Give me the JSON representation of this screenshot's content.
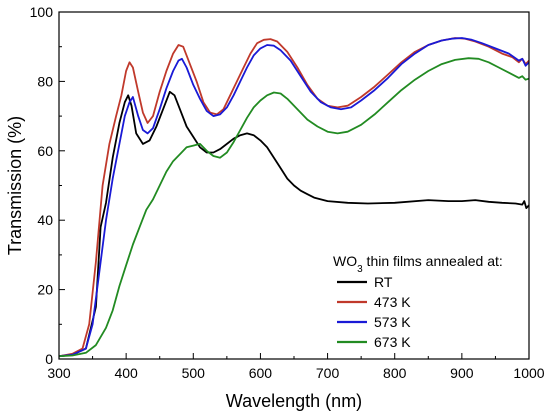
{
  "chart_data": {
    "type": "line",
    "xlabel": "Wavelength (nm)",
    "ylabel": "Transmission (%)",
    "xlim": [
      300,
      1000
    ],
    "ylim": [
      0,
      100
    ],
    "xticks": [
      300,
      400,
      500,
      600,
      700,
      800,
      900,
      1000
    ],
    "yticks": [
      0,
      20,
      40,
      60,
      80,
      100
    ],
    "grid": false,
    "legend": {
      "title_main": "WO",
      "title_sub": "3",
      "title_rest": " thin films annealed at:",
      "placement": "bottom-right"
    },
    "series": [
      {
        "name": "RT",
        "color": "#000000",
        "points": [
          [
            300,
            0.8
          ],
          [
            320,
            1.2
          ],
          [
            340,
            3
          ],
          [
            355,
            15
          ],
          [
            362,
            38
          ],
          [
            370,
            45
          ],
          [
            380,
            58
          ],
          [
            390,
            68
          ],
          [
            398,
            74
          ],
          [
            403,
            76
          ],
          [
            408,
            73
          ],
          [
            415,
            65
          ],
          [
            425,
            62
          ],
          [
            435,
            63
          ],
          [
            445,
            67
          ],
          [
            455,
            72
          ],
          [
            465,
            77
          ],
          [
            472,
            76
          ],
          [
            480,
            72
          ],
          [
            490,
            67
          ],
          [
            500,
            64
          ],
          [
            510,
            61
          ],
          [
            520,
            59.5
          ],
          [
            530,
            59.5
          ],
          [
            540,
            60.5
          ],
          [
            550,
            62
          ],
          [
            560,
            63.5
          ],
          [
            570,
            64.5
          ],
          [
            580,
            65
          ],
          [
            590,
            64.5
          ],
          [
            600,
            63
          ],
          [
            610,
            61
          ],
          [
            620,
            58
          ],
          [
            630,
            55
          ],
          [
            640,
            52
          ],
          [
            650,
            50
          ],
          [
            660,
            48.5
          ],
          [
            670,
            47.5
          ],
          [
            680,
            46.5
          ],
          [
            700,
            45.5
          ],
          [
            730,
            45
          ],
          [
            760,
            44.8
          ],
          [
            800,
            45
          ],
          [
            850,
            45.8
          ],
          [
            880,
            45.5
          ],
          [
            900,
            45.5
          ],
          [
            920,
            45.8
          ],
          [
            940,
            45.3
          ],
          [
            960,
            45
          ],
          [
            980,
            44.8
          ],
          [
            990,
            44.5
          ],
          [
            993,
            45.5
          ],
          [
            996,
            43.5
          ],
          [
            1000,
            44.3
          ]
        ]
      },
      {
        "name": "473 K",
        "color": "#c0392b",
        "points": [
          [
            300,
            0.8
          ],
          [
            320,
            1.5
          ],
          [
            335,
            3
          ],
          [
            345,
            10
          ],
          [
            355,
            28
          ],
          [
            365,
            50
          ],
          [
            375,
            62
          ],
          [
            385,
            70
          ],
          [
            393,
            76
          ],
          [
            400,
            83
          ],
          [
            405,
            85.5
          ],
          [
            410,
            84
          ],
          [
            418,
            77
          ],
          [
            425,
            71
          ],
          [
            432,
            68
          ],
          [
            440,
            70
          ],
          [
            450,
            77
          ],
          [
            460,
            83
          ],
          [
            470,
            88
          ],
          [
            478,
            90.5
          ],
          [
            485,
            90
          ],
          [
            495,
            85
          ],
          [
            505,
            80
          ],
          [
            515,
            74
          ],
          [
            525,
            71
          ],
          [
            535,
            70.5
          ],
          [
            545,
            72
          ],
          [
            555,
            76
          ],
          [
            565,
            80
          ],
          [
            575,
            84
          ],
          [
            585,
            88
          ],
          [
            595,
            91
          ],
          [
            605,
            92
          ],
          [
            615,
            92.2
          ],
          [
            625,
            91.5
          ],
          [
            640,
            88.5
          ],
          [
            655,
            84
          ],
          [
            670,
            79
          ],
          [
            685,
            75
          ],
          [
            700,
            73
          ],
          [
            715,
            72.5
          ],
          [
            730,
            73
          ],
          [
            750,
            75.5
          ],
          [
            770,
            78.5
          ],
          [
            790,
            82
          ],
          [
            810,
            85.5
          ],
          [
            830,
            88.5
          ],
          [
            850,
            90.5
          ],
          [
            870,
            91.8
          ],
          [
            890,
            92.5
          ],
          [
            905,
            92.3
          ],
          [
            920,
            91.5
          ],
          [
            940,
            90
          ],
          [
            960,
            88
          ],
          [
            975,
            87
          ],
          [
            985,
            85.5
          ],
          [
            990,
            86.5
          ],
          [
            995,
            85
          ],
          [
            1000,
            86
          ]
        ]
      },
      {
        "name": "573 K",
        "color": "#1a1ad6",
        "points": [
          [
            300,
            0.8
          ],
          [
            320,
            1.2
          ],
          [
            340,
            3
          ],
          [
            350,
            10
          ],
          [
            360,
            25
          ],
          [
            370,
            40
          ],
          [
            380,
            52
          ],
          [
            390,
            62
          ],
          [
            398,
            70
          ],
          [
            405,
            74
          ],
          [
            410,
            75.5
          ],
          [
            418,
            70
          ],
          [
            425,
            66
          ],
          [
            432,
            65
          ],
          [
            440,
            66.5
          ],
          [
            450,
            72
          ],
          [
            460,
            78
          ],
          [
            470,
            83
          ],
          [
            478,
            86
          ],
          [
            483,
            86.5
          ],
          [
            490,
            84
          ],
          [
            500,
            79
          ],
          [
            510,
            75
          ],
          [
            520,
            71.5
          ],
          [
            530,
            70
          ],
          [
            540,
            70.5
          ],
          [
            550,
            72.5
          ],
          [
            560,
            76
          ],
          [
            570,
            80
          ],
          [
            580,
            84
          ],
          [
            590,
            87.5
          ],
          [
            600,
            89.5
          ],
          [
            610,
            90.5
          ],
          [
            620,
            90.3
          ],
          [
            630,
            89
          ],
          [
            645,
            86
          ],
          [
            660,
            81.5
          ],
          [
            675,
            77
          ],
          [
            690,
            74
          ],
          [
            705,
            72.5
          ],
          [
            720,
            72
          ],
          [
            735,
            72.5
          ],
          [
            750,
            74.5
          ],
          [
            770,
            77.5
          ],
          [
            790,
            81
          ],
          [
            810,
            85
          ],
          [
            830,
            88
          ],
          [
            850,
            90.5
          ],
          [
            870,
            91.8
          ],
          [
            885,
            92.3
          ],
          [
            900,
            92.5
          ],
          [
            915,
            92
          ],
          [
            930,
            91
          ],
          [
            950,
            89.5
          ],
          [
            970,
            88
          ],
          [
            985,
            86
          ],
          [
            990,
            86.5
          ],
          [
            995,
            84.5
          ],
          [
            1000,
            85.5
          ]
        ]
      },
      {
        "name": "673 K",
        "color": "#228b22",
        "points": [
          [
            300,
            0.8
          ],
          [
            320,
            1
          ],
          [
            340,
            1.8
          ],
          [
            355,
            4
          ],
          [
            370,
            9
          ],
          [
            380,
            14
          ],
          [
            390,
            21
          ],
          [
            400,
            27
          ],
          [
            410,
            33
          ],
          [
            420,
            38
          ],
          [
            430,
            43
          ],
          [
            440,
            46
          ],
          [
            450,
            50
          ],
          [
            460,
            54
          ],
          [
            470,
            57
          ],
          [
            480,
            59
          ],
          [
            490,
            61
          ],
          [
            500,
            61.5
          ],
          [
            510,
            62
          ],
          [
            520,
            60
          ],
          [
            530,
            58.5
          ],
          [
            540,
            58
          ],
          [
            550,
            59.5
          ],
          [
            560,
            62.5
          ],
          [
            570,
            66
          ],
          [
            580,
            69.5
          ],
          [
            590,
            72.5
          ],
          [
            600,
            74.5
          ],
          [
            610,
            76
          ],
          [
            620,
            76.8
          ],
          [
            630,
            76.5
          ],
          [
            640,
            75
          ],
          [
            655,
            72
          ],
          [
            670,
            69
          ],
          [
            685,
            67
          ],
          [
            700,
            65.5
          ],
          [
            715,
            65
          ],
          [
            730,
            65.5
          ],
          [
            750,
            67.5
          ],
          [
            770,
            70.5
          ],
          [
            790,
            74
          ],
          [
            810,
            77.5
          ],
          [
            830,
            80.5
          ],
          [
            850,
            83
          ],
          [
            870,
            85
          ],
          [
            890,
            86.2
          ],
          [
            910,
            86.7
          ],
          [
            925,
            86.5
          ],
          [
            940,
            85.5
          ],
          [
            955,
            84
          ],
          [
            970,
            82.5
          ],
          [
            985,
            81
          ],
          [
            990,
            81.5
          ],
          [
            995,
            80.5
          ],
          [
            1000,
            80.8
          ]
        ]
      }
    ]
  }
}
